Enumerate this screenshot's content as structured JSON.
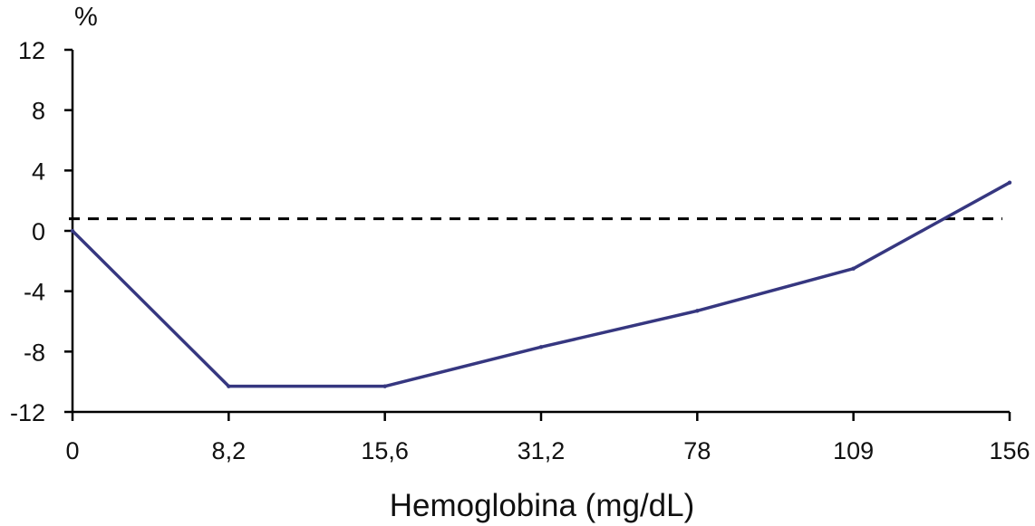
{
  "chart_data": {
    "type": "line",
    "categories": [
      "0",
      "8,2",
      "15,6",
      "31,2",
      "78",
      "109",
      "156"
    ],
    "series": [
      {
        "values": [
          0,
          -10.3,
          -10.3,
          -7.7,
          -5.3,
          -2.5,
          3.2
        ]
      }
    ],
    "reference_line": {
      "value": 0.8,
      "style": "dashed"
    },
    "ylim": [
      -12,
      12
    ],
    "yticks": [
      12,
      8,
      4,
      0,
      -4,
      -8,
      -12
    ],
    "ytick_labels": [
      "12",
      "8",
      "4",
      "0",
      "-4",
      "-8",
      "-12"
    ],
    "y_unit": "%",
    "xlabel": "Hemoglobina (mg/dL)",
    "grid": false,
    "colors": {
      "series": "#363780",
      "reference": "#000000",
      "axes": "#000000"
    }
  }
}
